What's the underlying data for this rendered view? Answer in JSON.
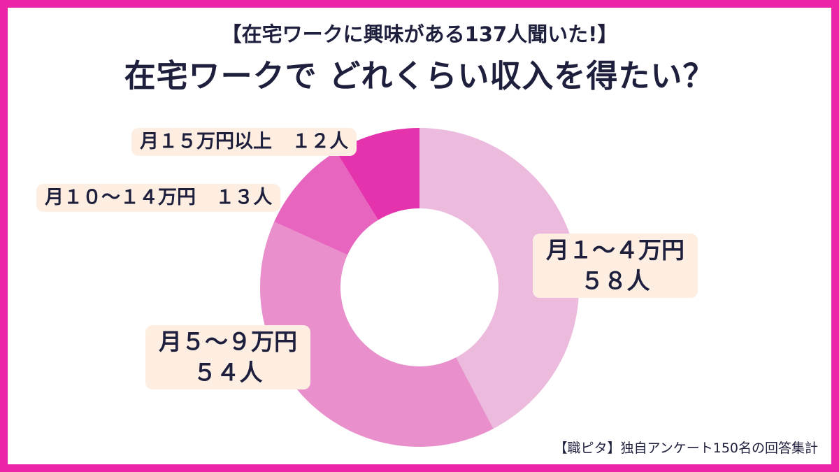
{
  "header": {
    "subtitle": "【在宅ワークに興味がある137人聞いた!】",
    "title": "在宅ワークで どれくらい収入を得たい？"
  },
  "footer": {
    "source": "【職ピタ】独自アンケート150名の回答集計"
  },
  "colors": {
    "frame": "#ec25a8",
    "slice_1": "#ebbadd",
    "slice_2": "#e98fcc",
    "slice_3": "#e765be",
    "slice_4": "#e532ad",
    "label_bg": "#fdeee1"
  },
  "chart_data": {
    "type": "pie",
    "style": "donut",
    "slices": [
      {
        "category": "月１～４万円",
        "count_label": "５８人",
        "value": 58
      },
      {
        "category": "月５～９万円",
        "count_label": "５４人",
        "value": 54
      },
      {
        "category": "月１０～１４万円",
        "count_label": "１３人",
        "value": 13
      },
      {
        "category": "月１５万円以上",
        "count_label": "１２人",
        "value": 12
      }
    ]
  }
}
